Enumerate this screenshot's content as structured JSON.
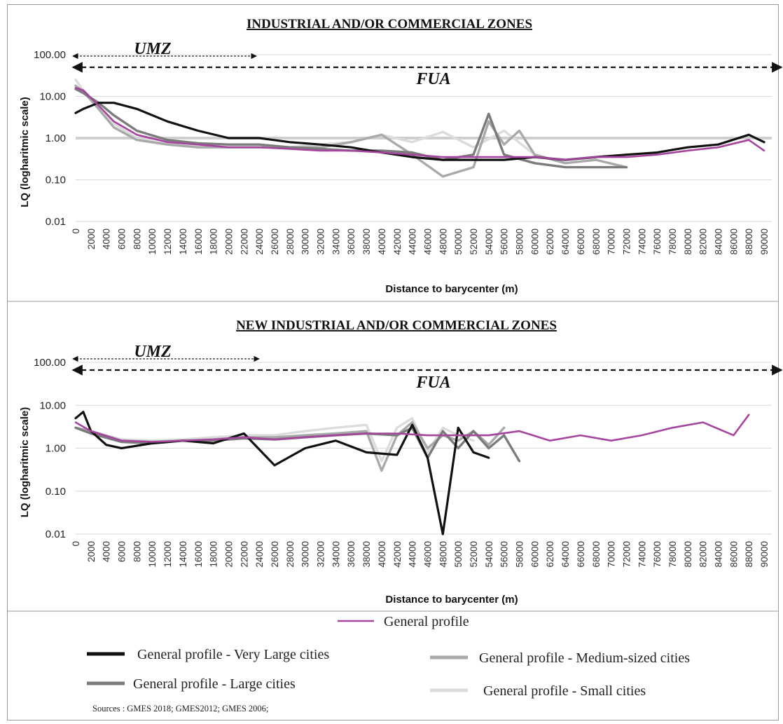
{
  "chart_data": [
    {
      "type": "line",
      "title": "INDUSTRIAL AND/OR COMMERCIAL ZONES",
      "xlabel": "Distance to barycenter (m)",
      "ylabel": "LQ (logharitmic scale)",
      "yscale": "log",
      "ylim": [
        0.01,
        100
      ],
      "yticks": [
        "0.01",
        "0.10",
        "1.00",
        "10.00",
        "100.00"
      ],
      "xlim": [
        0,
        91000
      ],
      "xticks": [
        0,
        2000,
        4000,
        6000,
        8000,
        10000,
        12000,
        14000,
        16000,
        18000,
        20000,
        22000,
        24000,
        26000,
        28000,
        30000,
        32000,
        34000,
        36000,
        38000,
        40000,
        42000,
        44000,
        46000,
        48000,
        50000,
        52000,
        54000,
        56000,
        58000,
        60000,
        62000,
        64000,
        66000,
        68000,
        70000,
        72000,
        74000,
        76000,
        78000,
        80000,
        82000,
        84000,
        86000,
        88000,
        90000
      ],
      "grid": "horizontal",
      "reference_line": 1.0,
      "annotations": [
        {
          "label": "UMZ",
          "from": 0,
          "to": 24000
        },
        {
          "label": "FUA",
          "from": 0,
          "to": 91000
        }
      ],
      "series": [
        {
          "name": "General profile - Small cities",
          "color": "#dcdcdc",
          "x": [
            0,
            1000,
            3000,
            5000,
            8000,
            12000,
            16000,
            20000,
            24000,
            28000,
            32000,
            36000,
            40000,
            44000,
            48000,
            52000,
            56000,
            60000
          ],
          "y": [
            25,
            14,
            6,
            2.2,
            1.0,
            0.7,
            0.65,
            0.6,
            0.6,
            0.6,
            0.7,
            0.8,
            1.2,
            0.8,
            1.4,
            0.6,
            1.5,
            0.4
          ]
        },
        {
          "name": "General profile - Medium-sized cities",
          "color": "#a9a9a9",
          "x": [
            0,
            1000,
            3000,
            5000,
            8000,
            12000,
            16000,
            20000,
            24000,
            28000,
            32000,
            36000,
            40000,
            44000,
            48000,
            52000,
            54000,
            56000,
            58000,
            60000,
            64000,
            68000,
            72000
          ],
          "y": [
            18,
            13,
            5,
            1.8,
            0.9,
            0.7,
            0.6,
            0.6,
            0.6,
            0.6,
            0.6,
            0.8,
            1.2,
            0.4,
            0.12,
            0.2,
            2.5,
            0.7,
            1.5,
            0.4,
            0.25,
            0.3,
            0.2
          ]
        },
        {
          "name": "General profile - Large cities",
          "color": "#7b7b7b",
          "x": [
            0,
            1000,
            3000,
            5000,
            8000,
            12000,
            16000,
            20000,
            24000,
            28000,
            32000,
            36000,
            40000,
            44000,
            48000,
            52000,
            54000,
            56000,
            60000,
            64000,
            68000,
            72000
          ],
          "y": [
            15,
            12,
            7,
            3.5,
            1.5,
            0.9,
            0.75,
            0.7,
            0.7,
            0.6,
            0.55,
            0.5,
            0.5,
            0.45,
            0.3,
            0.4,
            3.8,
            0.4,
            0.25,
            0.2,
            0.2,
            0.2
          ]
        },
        {
          "name": "General profile - Very Large cities",
          "color": "#111111",
          "x": [
            0,
            1000,
            3000,
            5000,
            8000,
            12000,
            16000,
            20000,
            24000,
            28000,
            32000,
            36000,
            40000,
            44000,
            48000,
            52000,
            56000,
            60000,
            64000,
            68000,
            72000,
            76000,
            80000,
            84000,
            88000,
            90000
          ],
          "y": [
            4,
            5,
            7,
            7,
            5,
            2.5,
            1.5,
            1.0,
            1.0,
            0.8,
            0.7,
            0.6,
            0.45,
            0.35,
            0.3,
            0.3,
            0.3,
            0.35,
            0.3,
            0.35,
            0.4,
            0.45,
            0.6,
            0.7,
            1.2,
            0.8
          ]
        },
        {
          "name": "General profile",
          "color": "#a6459f",
          "x": [
            0,
            1000,
            3000,
            5000,
            8000,
            12000,
            16000,
            20000,
            24000,
            28000,
            32000,
            36000,
            40000,
            44000,
            48000,
            52000,
            56000,
            60000,
            64000,
            68000,
            72000,
            76000,
            80000,
            84000,
            88000,
            90000
          ],
          "y": [
            16,
            14,
            6,
            2.5,
            1.2,
            0.8,
            0.7,
            0.6,
            0.6,
            0.55,
            0.5,
            0.5,
            0.45,
            0.4,
            0.35,
            0.35,
            0.35,
            0.35,
            0.3,
            0.35,
            0.35,
            0.4,
            0.5,
            0.6,
            0.9,
            0.5
          ]
        }
      ]
    },
    {
      "type": "line",
      "title": "NEW INDUSTRIAL AND/OR COMMERCIAL ZONES",
      "xlabel": "Distance to barycenter (m)",
      "ylabel": "LQ (logharitmic scale)",
      "yscale": "log",
      "ylim": [
        0.01,
        100
      ],
      "yticks": [
        "0.01",
        "0.10",
        "1.00",
        "10.00",
        "100.00"
      ],
      "xlim": [
        0,
        91000
      ],
      "xticks": [
        0,
        2000,
        4000,
        6000,
        8000,
        10000,
        12000,
        14000,
        16000,
        18000,
        20000,
        22000,
        24000,
        26000,
        28000,
        30000,
        32000,
        34000,
        36000,
        38000,
        40000,
        42000,
        44000,
        46000,
        48000,
        50000,
        52000,
        54000,
        56000,
        58000,
        60000,
        62000,
        64000,
        66000,
        68000,
        70000,
        72000,
        74000,
        76000,
        78000,
        80000,
        82000,
        84000,
        86000,
        88000,
        90000
      ],
      "grid": "horizontal",
      "annotations": [
        {
          "label": "UMZ",
          "from": 0,
          "to": 24000
        },
        {
          "label": "FUA",
          "from": 0,
          "to": 91000
        }
      ],
      "series": [
        {
          "name": "General profile - Small cities",
          "color": "#dcdcdc",
          "x": [
            0,
            2000,
            6000,
            10000,
            14000,
            18000,
            22000,
            26000,
            30000,
            34000,
            38000,
            40000,
            42000,
            44000,
            46000,
            48000,
            50000,
            52000
          ],
          "y": [
            3,
            2.5,
            1.6,
            1.5,
            1.6,
            1.8,
            2.0,
            2.0,
            2.5,
            3.0,
            3.5,
            0.5,
            3.0,
            5.0,
            0.8,
            3.0,
            2.0,
            1.5
          ]
        },
        {
          "name": "General profile - Medium-sized cities",
          "color": "#a9a9a9",
          "x": [
            0,
            2000,
            6000,
            10000,
            14000,
            18000,
            22000,
            26000,
            30000,
            34000,
            38000,
            40000,
            42000,
            44000,
            46000,
            48000,
            50000,
            52000,
            54000,
            56000
          ],
          "y": [
            3,
            2.5,
            1.5,
            1.4,
            1.5,
            1.6,
            1.8,
            1.8,
            2.0,
            2.2,
            2.5,
            0.3,
            2.0,
            4.0,
            1.0,
            2.0,
            1.5,
            2.5,
            1.2,
            3.0
          ]
        },
        {
          "name": "General profile - Large cities",
          "color": "#7b7b7b",
          "x": [
            0,
            2000,
            6000,
            10000,
            14000,
            18000,
            22000,
            26000,
            30000,
            34000,
            38000,
            42000,
            44000,
            46000,
            48000,
            50000,
            52000,
            54000,
            56000,
            58000
          ],
          "y": [
            3,
            2.2,
            1.4,
            1.3,
            1.5,
            1.5,
            1.7,
            1.6,
            1.8,
            2.0,
            2.2,
            2.0,
            3.0,
            0.6,
            2.5,
            1.0,
            2.5,
            1.0,
            2.0,
            0.5
          ]
        },
        {
          "name": "General profile - Very Large cities",
          "color": "#111111",
          "x": [
            0,
            1000,
            2000,
            4000,
            6000,
            10000,
            14000,
            18000,
            22000,
            26000,
            30000,
            34000,
            38000,
            42000,
            44000,
            46000,
            48000,
            50000,
            52000,
            54000
          ],
          "y": [
            5,
            7,
            2.5,
            1.2,
            1.0,
            1.3,
            1.5,
            1.3,
            2.2,
            0.4,
            1.0,
            1.5,
            0.8,
            0.7,
            3.5,
            0.6,
            0.01,
            3.0,
            0.8,
            0.6
          ]
        },
        {
          "name": "General profile",
          "color": "#a6459f",
          "x": [
            0,
            2000,
            6000,
            10000,
            14000,
            18000,
            22000,
            26000,
            30000,
            34000,
            38000,
            42000,
            46000,
            50000,
            54000,
            58000,
            62000,
            66000,
            70000,
            74000,
            78000,
            82000,
            86000,
            88000
          ],
          "y": [
            4,
            2.5,
            1.5,
            1.4,
            1.5,
            1.6,
            1.8,
            1.6,
            1.8,
            2.0,
            2.2,
            2.2,
            2.0,
            2.0,
            2.0,
            2.5,
            1.5,
            2.0,
            1.5,
            2.0,
            3.0,
            4.0,
            2.0,
            6.0
          ]
        }
      ]
    }
  ],
  "legend": {
    "items": [
      {
        "label": "General profile",
        "color": "#a6459f"
      },
      {
        "label": "General profile - Very Large cities",
        "color": "#111111"
      },
      {
        "label": "General profile - Medium-sized cities",
        "color": "#a9a9a9"
      },
      {
        "label": "General profile - Large cities",
        "color": "#7b7b7b"
      },
      {
        "label": "General profile - Small cities",
        "color": "#dcdcdc"
      }
    ]
  },
  "sources": "Sources : GMES 2018; GMES2012; GMES 2006;"
}
